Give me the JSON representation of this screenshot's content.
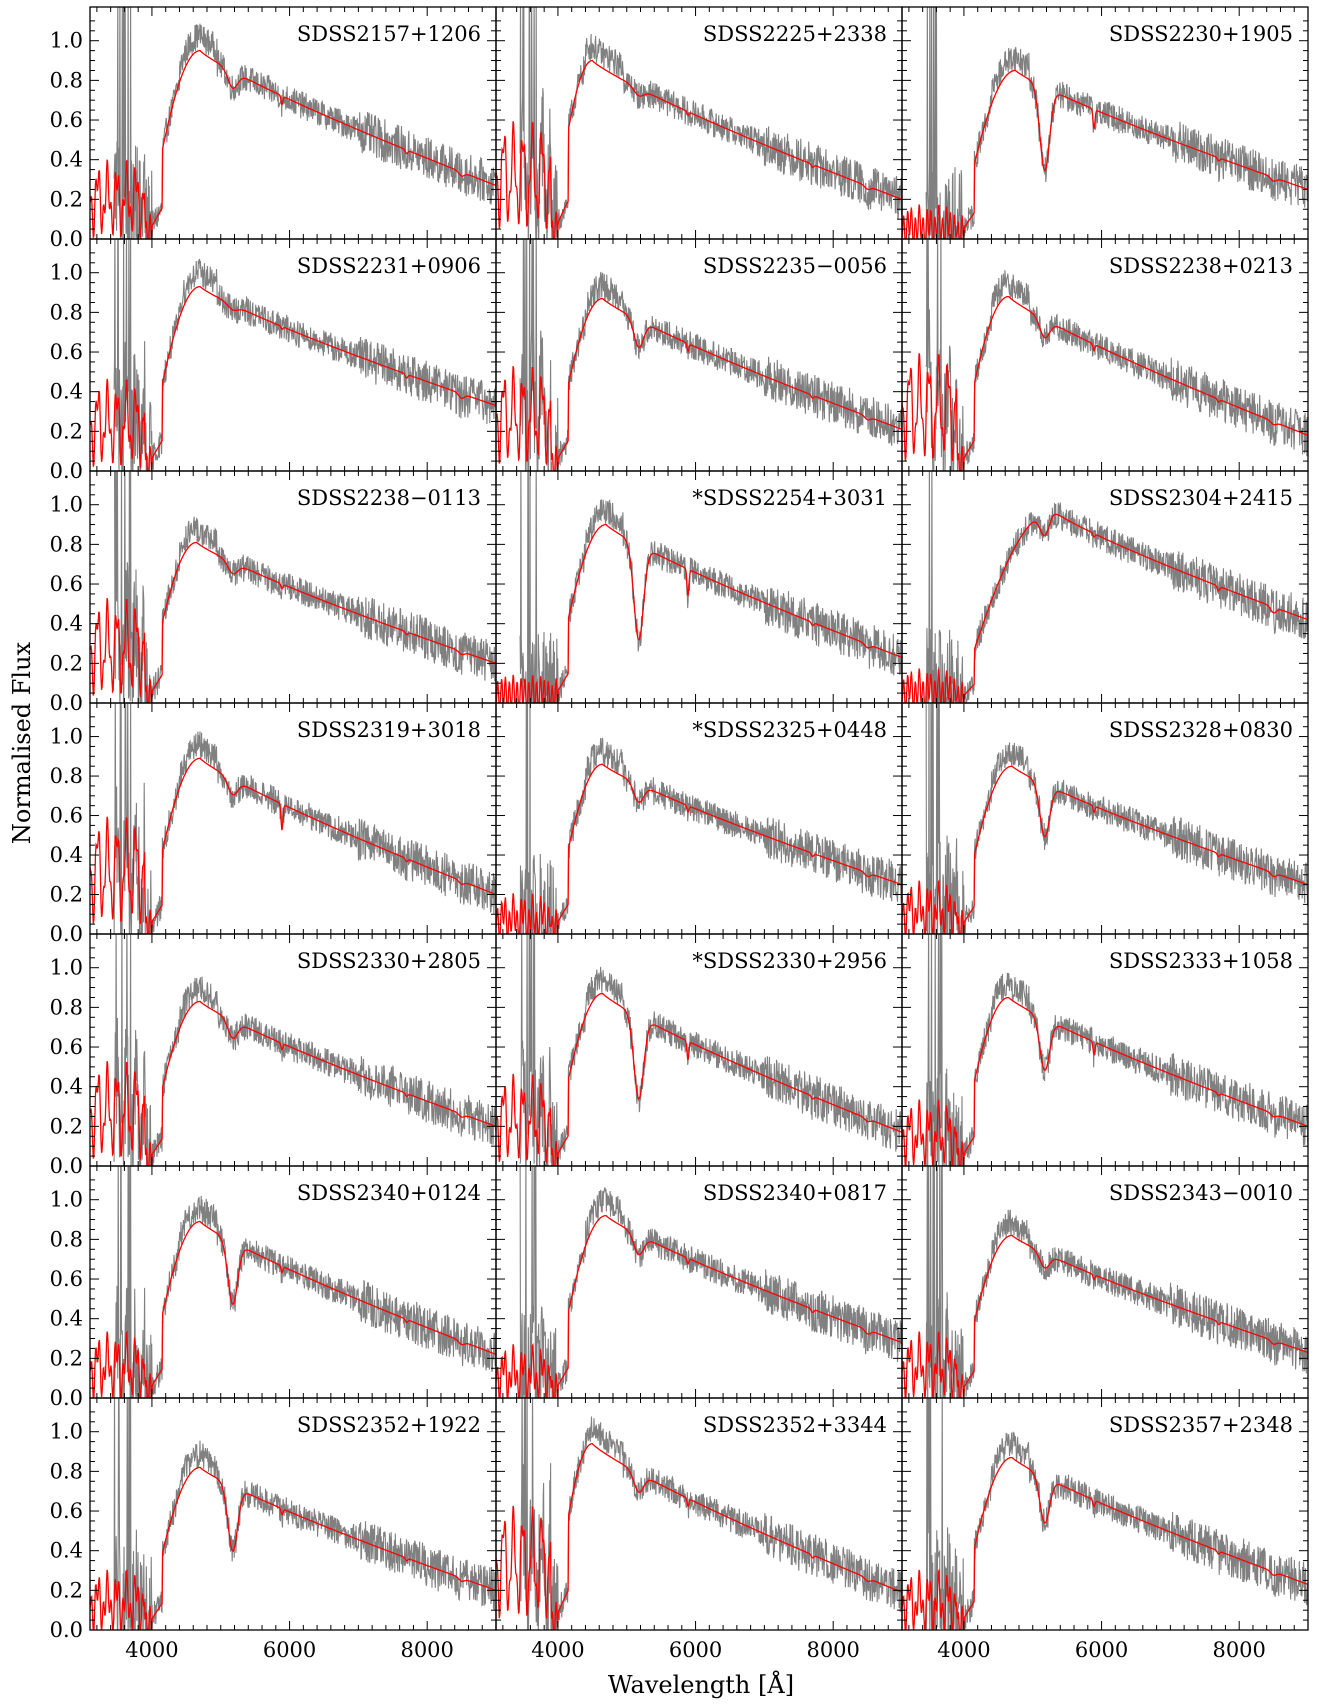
{
  "figure": {
    "xlabel": "Wavelength [Å]",
    "ylabel": "Normalised Flux"
  },
  "colors": {
    "observed": "#808080",
    "model": "#ff0000",
    "axes": "#000000"
  },
  "chart_data": {
    "type": "line",
    "layout": {
      "rows": 7,
      "cols": 3
    },
    "xlim": [
      3100,
      9000
    ],
    "ylim": [
      0,
      1.17
    ],
    "xticks": [
      4000,
      6000,
      8000
    ],
    "xtick_labels": [
      "4000",
      "6000",
      "8000"
    ],
    "yticks": [
      0.0,
      0.2,
      0.4,
      0.6,
      0.8,
      1.0
    ],
    "ytick_labels": [
      "0.0",
      "0.2",
      "0.4",
      "0.6",
      "0.8",
      "1.0"
    ],
    "series_legend": "none",
    "panels": [
      {
        "name": "SDSS2157+1206",
        "peak": 0.95,
        "peak_wl": 4700,
        "end": 0.27,
        "na": 0.06,
        "mg": 0.07,
        "mg_depth": 0.1,
        "blue": 0.5
      },
      {
        "name": "SDSS2225+2338",
        "peak": 0.9,
        "peak_wl": 4500,
        "end": 0.2,
        "na": 0.03,
        "mg": 0.05,
        "mg_depth": 0.05,
        "blue": 0.8
      },
      {
        "name": "SDSS2230+1905",
        "peak": 0.85,
        "peak_wl": 4750,
        "end": 0.25,
        "na": 0.15,
        "mg": 0.3,
        "mg_depth": 0.55,
        "blue": 0.15
      },
      {
        "name": "SDSS2231+0906",
        "peak": 0.93,
        "peak_wl": 4700,
        "end": 0.33,
        "na": 0.02,
        "mg": 0.03,
        "mg_depth": 0.03,
        "blue": 0.6
      },
      {
        "name": "SDSS2235−0056",
        "peak": 0.87,
        "peak_wl": 4650,
        "end": 0.21,
        "na": 0.06,
        "mg": 0.1,
        "mg_depth": 0.18,
        "blue": 0.7
      },
      {
        "name": "SDSS2238+0213",
        "peak": 0.88,
        "peak_wl": 4650,
        "end": 0.18,
        "na": 0.05,
        "mg": 0.1,
        "mg_depth": 0.12,
        "blue": 0.8
      },
      {
        "name": "SDSS2238−0113",
        "peak": 0.81,
        "peak_wl": 4650,
        "end": 0.2,
        "na": 0.04,
        "mg": 0.08,
        "mg_depth": 0.08,
        "blue": 0.7
      },
      {
        "name": "*SDSS2254+3031",
        "peak": 0.9,
        "peak_wl": 4700,
        "end": 0.23,
        "na": 0.2,
        "mg": 0.35,
        "mg_depth": 0.6,
        "blue": 0.1
      },
      {
        "name": "SDSS2304+2415",
        "peak": 0.97,
        "peak_wl": 5300,
        "end": 0.42,
        "na": 0.02,
        "mg": 0.1,
        "mg_depth": 0.12,
        "blue": 0.15
      },
      {
        "name": "SDSS2319+3018",
        "peak": 0.89,
        "peak_wl": 4700,
        "end": 0.2,
        "na": 0.2,
        "mg": 0.08,
        "mg_depth": 0.1,
        "blue": 0.8
      },
      {
        "name": "*SDSS2325+0448",
        "peak": 0.86,
        "peak_wl": 4650,
        "end": 0.25,
        "na": 0.05,
        "mg": 0.1,
        "mg_depth": 0.12,
        "blue": 0.2
      },
      {
        "name": "SDSS2328+0830",
        "peak": 0.85,
        "peak_wl": 4700,
        "end": 0.25,
        "na": 0.05,
        "mg": 0.2,
        "mg_depth": 0.35,
        "blue": 0.3
      },
      {
        "name": "SDSS2330+2805",
        "peak": 0.83,
        "peak_wl": 4700,
        "end": 0.2,
        "na": 0.05,
        "mg": 0.1,
        "mg_depth": 0.12,
        "blue": 0.7
      },
      {
        "name": "*SDSS2330+2956",
        "peak": 0.87,
        "peak_wl": 4650,
        "end": 0.17,
        "na": 0.15,
        "mg": 0.35,
        "mg_depth": 0.55,
        "blue": 0.6
      },
      {
        "name": "SDSS2333+1058",
        "peak": 0.85,
        "peak_wl": 4650,
        "end": 0.2,
        "na": 0.1,
        "mg": 0.2,
        "mg_depth": 0.35,
        "blue": 0.4
      },
      {
        "name": "SDSS2340+0124",
        "peak": 0.89,
        "peak_wl": 4700,
        "end": 0.22,
        "na": 0.05,
        "mg": 0.25,
        "mg_depth": 0.4,
        "blue": 0.4
      },
      {
        "name": "SDSS2340+0817",
        "peak": 0.92,
        "peak_wl": 4700,
        "end": 0.28,
        "na": 0.04,
        "mg": 0.1,
        "mg_depth": 0.12,
        "blue": 0.3
      },
      {
        "name": "SDSS2343−0010",
        "peak": 0.82,
        "peak_wl": 4700,
        "end": 0.23,
        "na": 0.04,
        "mg": 0.1,
        "mg_depth": 0.1,
        "blue": 0.4
      },
      {
        "name": "SDSS2352+1922",
        "peak": 0.82,
        "peak_wl": 4700,
        "end": 0.2,
        "na": 0.05,
        "mg": 0.25,
        "mg_depth": 0.45,
        "blue": 0.35
      },
      {
        "name": "SDSS2352+3344",
        "peak": 0.94,
        "peak_wl": 4500,
        "end": 0.19,
        "na": 0.06,
        "mg": 0.1,
        "mg_depth": 0.12,
        "blue": 0.85
      },
      {
        "name": "SDSS2357+2348",
        "peak": 0.87,
        "peak_wl": 4700,
        "end": 0.23,
        "na": 0.05,
        "mg": 0.2,
        "mg_depth": 0.3,
        "blue": 0.35
      }
    ]
  }
}
